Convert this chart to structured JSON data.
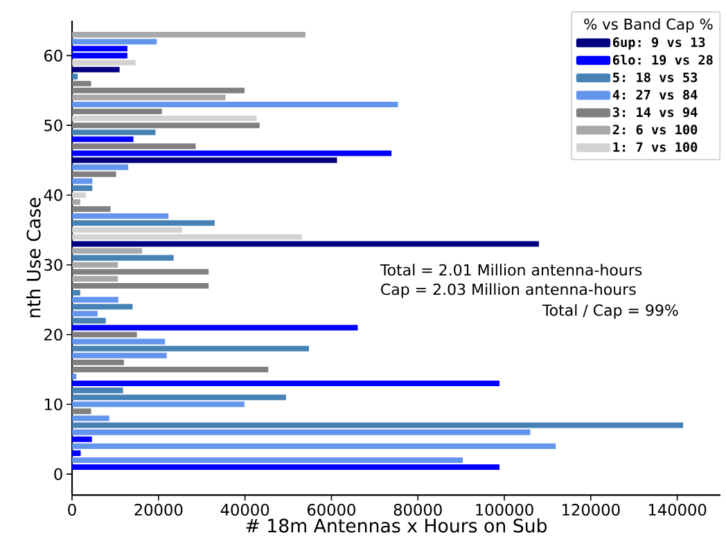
{
  "chart_data": {
    "type": "bar",
    "orientation": "horizontal",
    "xlabel": "# 18m Antennas x Hours on Sub",
    "ylabel": "nth Use Case",
    "legend_title": "% vs Band Cap %",
    "legend": "top right",
    "xlim": [
      0,
      150000
    ],
    "xticks": [
      0,
      20000,
      40000,
      60000,
      80000,
      100000,
      120000,
      140000
    ],
    "ylim": [
      -3,
      65
    ],
    "yticks": [
      0,
      10,
      20,
      30,
      40,
      50,
      60
    ],
    "annotations": [
      "Total = 2.01 Million antenna-hours",
      "Cap   = 2.03 Million antenna-hours",
      "Total / Cap = 99%"
    ],
    "series": [
      {
        "name": "6up: 9 vs 13",
        "color": "#000080",
        "x": [
          33,
          45,
          58
        ],
        "values": [
          108000,
          61300,
          11000
        ]
      },
      {
        "name": "6lo: 19 vs 28",
        "color": "#0000ff",
        "x": [
          1,
          3,
          5,
          13,
          21,
          46,
          48,
          60,
          61
        ],
        "values": [
          98900,
          2000,
          4600,
          98900,
          66100,
          73900,
          14200,
          12800,
          12800
        ]
      },
      {
        "name": "5:  18 vs 53",
        "color": "#4682b4",
        "x": [
          7,
          11,
          12,
          18,
          22,
          24,
          26,
          31,
          36,
          41,
          49,
          57
        ],
        "values": [
          141400,
          49500,
          11800,
          54800,
          7800,
          14000,
          1900,
          23500,
          33000,
          4700,
          19300,
          1300
        ]
      },
      {
        "name": "4:  27 vs 84",
        "color": "#6495ed",
        "x": [
          2,
          4,
          6,
          8,
          10,
          14,
          17,
          19,
          23,
          25,
          37,
          42,
          44,
          53,
          62
        ],
        "values": [
          90400,
          111900,
          106000,
          8600,
          39900,
          1000,
          21900,
          21500,
          5900,
          10700,
          22300,
          4700,
          13000,
          75400,
          19600
        ]
      },
      {
        "name": "3:  14 vs 94",
        "color": "#808080",
        "x": [
          9,
          15,
          16,
          20,
          27,
          29,
          38,
          43,
          47,
          50,
          52,
          55,
          56
        ],
        "values": [
          4400,
          45400,
          12000,
          15000,
          31600,
          31600,
          8900,
          10200,
          28600,
          43400,
          20800,
          39900,
          4400
        ]
      },
      {
        "name": "2:   6 vs 100",
        "color": "#a9a9a9",
        "x": [
          28,
          30,
          32,
          39,
          54,
          63
        ],
        "values": [
          10600,
          10600,
          16200,
          1900,
          35500,
          54000
        ]
      },
      {
        "name": "1:   7 vs 100",
        "color": "#d3d3d3",
        "x": [
          34,
          35,
          40,
          51,
          59
        ],
        "values": [
          53200,
          25500,
          3200,
          42700,
          14700
        ]
      }
    ]
  }
}
